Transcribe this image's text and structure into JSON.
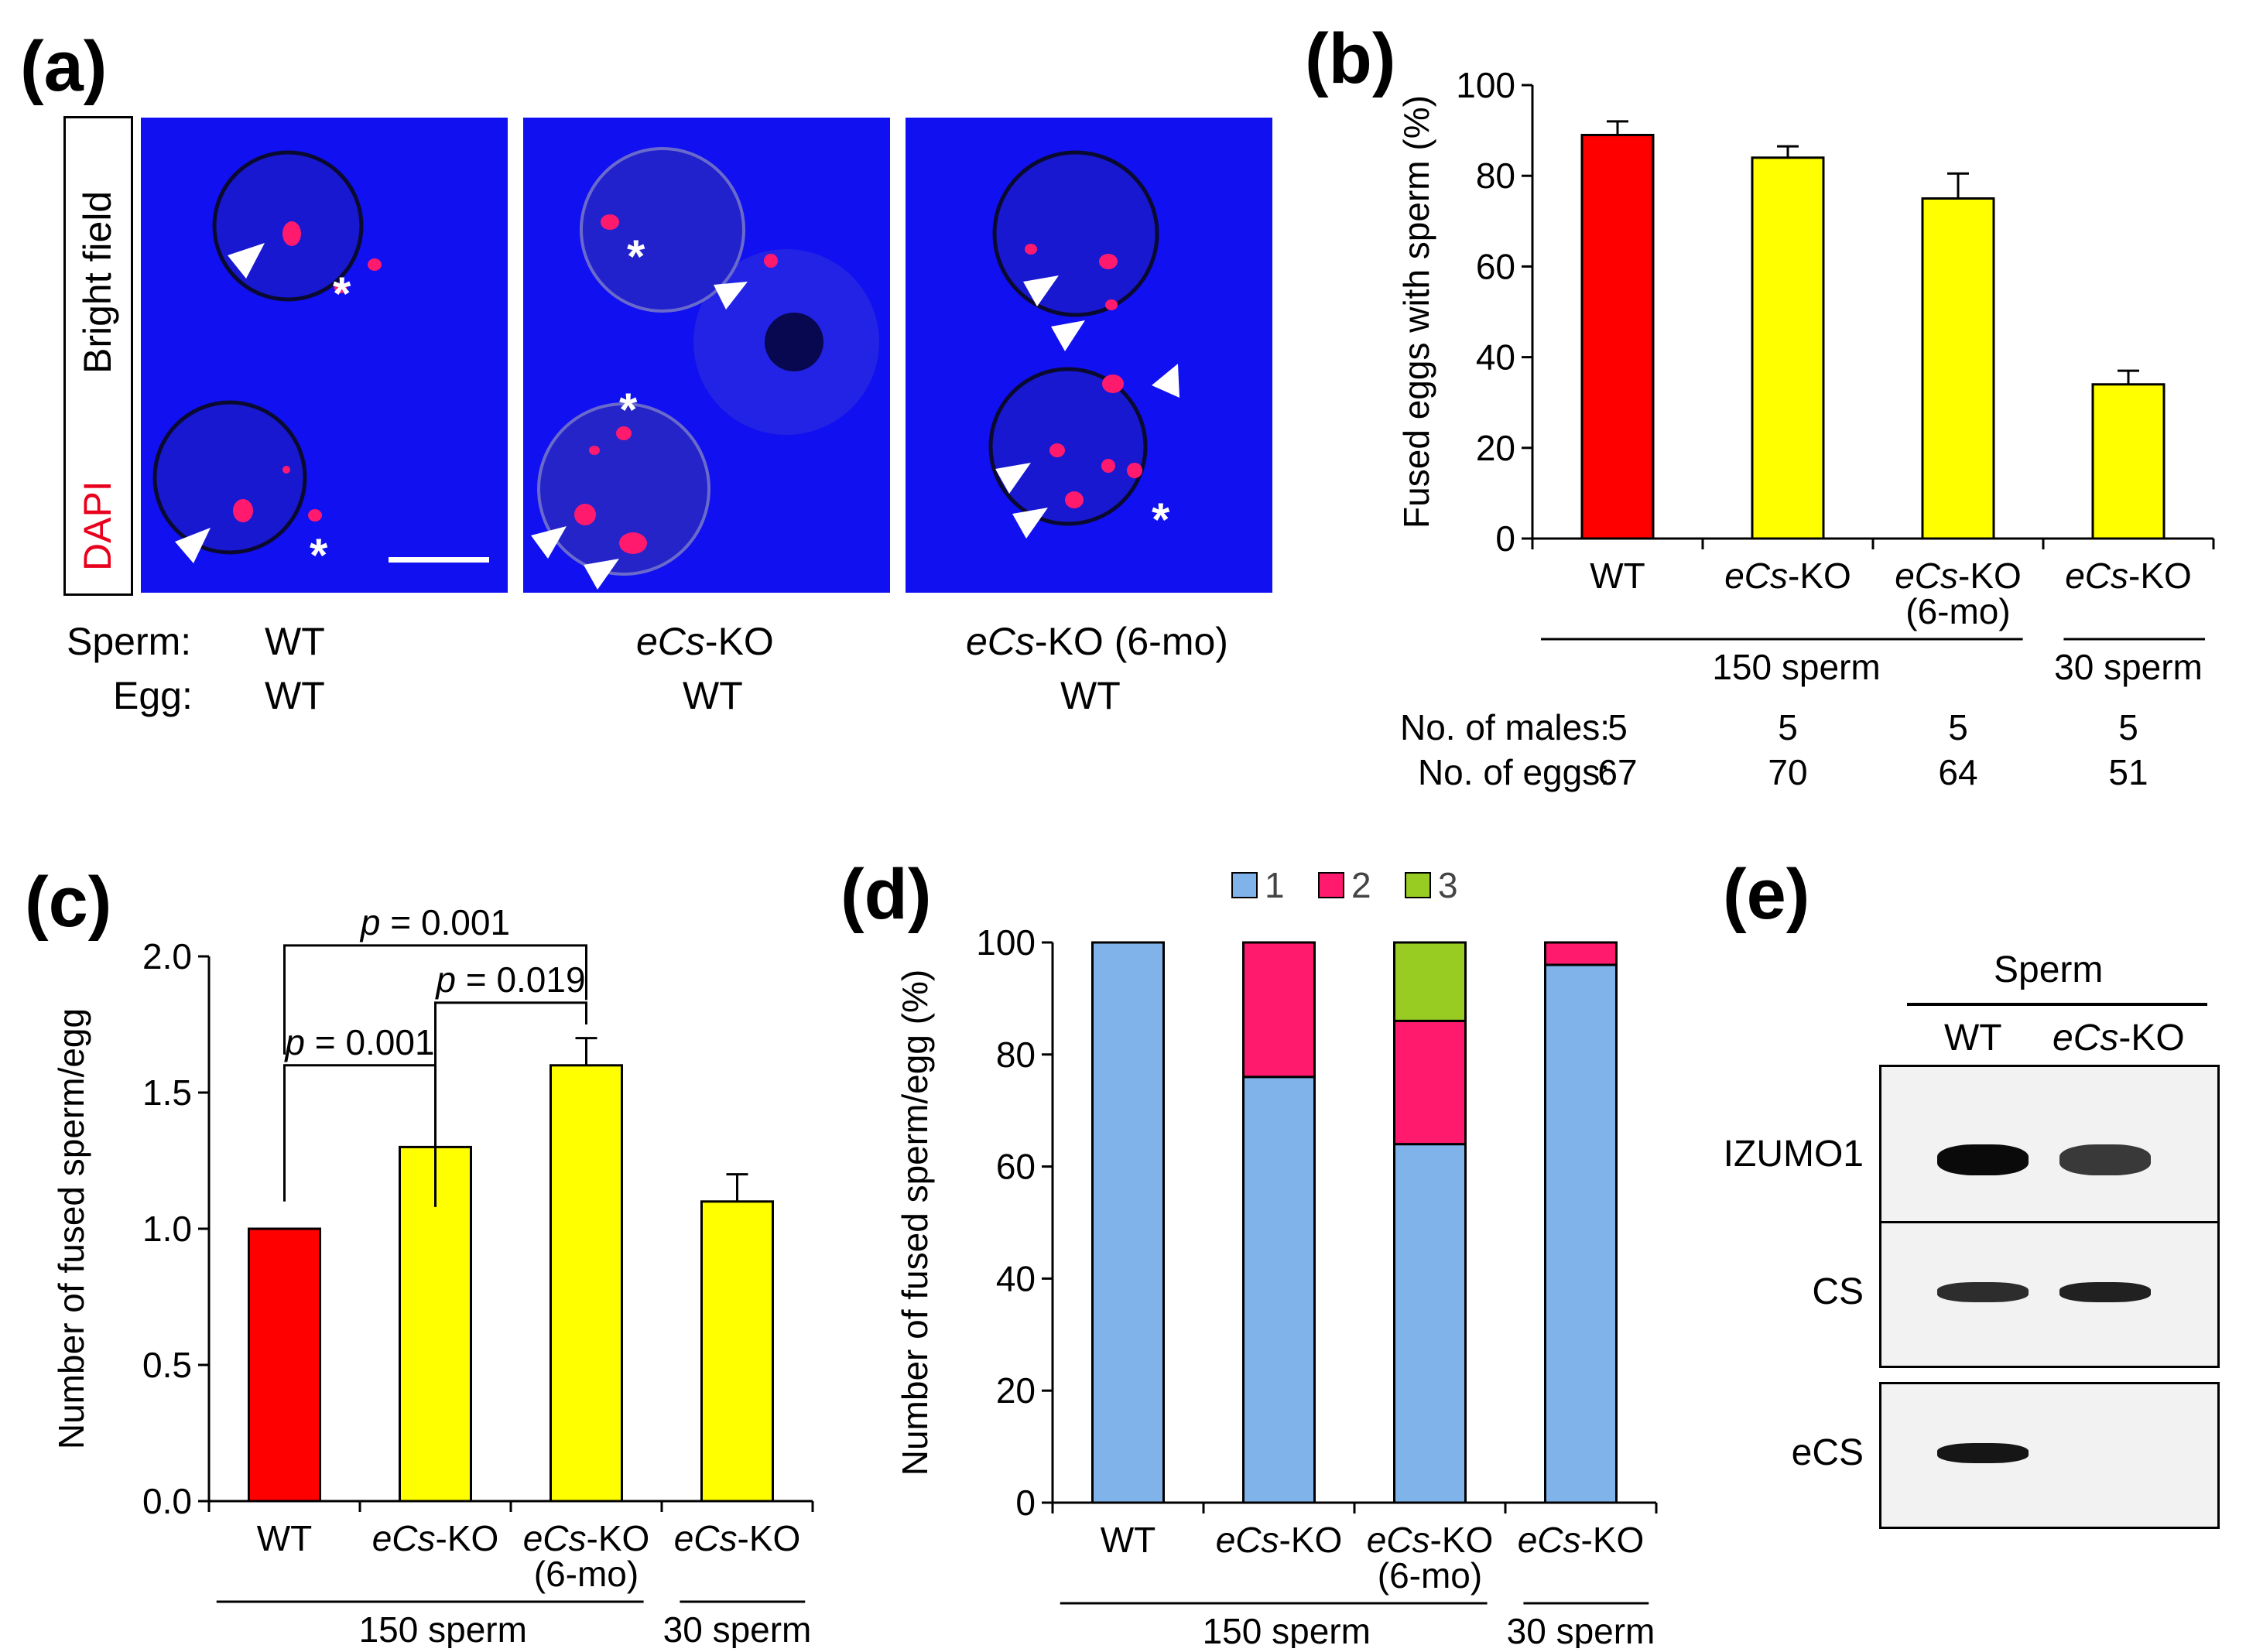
{
  "figure": {
    "panels": {
      "a": {
        "label": "(a)",
        "stain_labels": {
          "bright": "Bright field",
          "dapi": "DAPI"
        },
        "row_sperm_label": "Sperm:",
        "row_egg_label": "Egg:",
        "columns": [
          {
            "sperm": "WT",
            "sperm_italic": "",
            "sperm_suffix": "",
            "egg": "WT"
          },
          {
            "sperm": "",
            "sperm_italic": "eCs",
            "sperm_suffix": "-KO",
            "egg": "WT"
          },
          {
            "sperm": "",
            "sperm_italic": "eCs",
            "sperm_suffix": "-KO (6-mo)",
            "egg": "WT"
          }
        ],
        "colors": {
          "background": "#1010f0",
          "dapi": "#ff1a6e",
          "marker": "#ffffff"
        }
      },
      "b": {
        "label": "(b)"
      },
      "c": {
        "label": "(c)"
      },
      "d": {
        "label": "(d)"
      },
      "e": {
        "label": "(e)",
        "header": "Sperm",
        "lanes": [
          {
            "text": "WT",
            "italic": "",
            "suffix": ""
          },
          {
            "text": "",
            "italic": "eCs",
            "suffix": "-KO"
          }
        ],
        "rows": [
          {
            "name": "IZUMO1",
            "bands": [
              1.0,
              0.8
            ]
          },
          {
            "name": "CS",
            "bands": [
              0.85,
              0.9
            ]
          },
          {
            "name": "eCS",
            "bands": [
              0.95,
              0.0
            ]
          }
        ]
      }
    }
  },
  "chart_data": [
    {
      "id": "b",
      "type": "bar",
      "categories": [
        "WT",
        "eCs-KO",
        "eCs-KO (6-mo)",
        "eCs-KO"
      ],
      "category_lines": [
        {
          "italic": "",
          "text": "WT",
          "line2": ""
        },
        {
          "italic": "eCs",
          "text": "-KO",
          "line2": ""
        },
        {
          "italic": "eCs",
          "text": "-KO",
          "line2": "(6-mo)"
        },
        {
          "italic": "eCs",
          "text": "-KO",
          "line2": ""
        }
      ],
      "values": [
        89,
        84,
        75,
        34
      ],
      "errors": [
        3,
        2.5,
        5.5,
        3
      ],
      "colors": [
        "#ff0000",
        "#ffff00",
        "#ffff00",
        "#ffff00"
      ],
      "ylabel": "Fused eggs with sperm (%)",
      "ylim": [
        0,
        100
      ],
      "yticks": [
        "0",
        "20",
        "40",
        "60",
        "80",
        "100"
      ],
      "groups": [
        {
          "label": "150 sperm"
        },
        {
          "label": "30 sperm"
        }
      ],
      "table": {
        "rows": [
          {
            "label": "No. of males:",
            "values": [
              "5",
              "5",
              "5",
              "5"
            ]
          },
          {
            "label": "No. of eggs:",
            "values": [
              "67",
              "70",
              "64",
              "51"
            ]
          }
        ]
      }
    },
    {
      "id": "c",
      "type": "bar",
      "categories": [
        "WT",
        "eCs-KO",
        "eCs-KO (6-mo)",
        "eCs-KO"
      ],
      "category_lines": [
        {
          "italic": "",
          "text": "WT",
          "line2": ""
        },
        {
          "italic": "eCs",
          "text": "-KO",
          "line2": ""
        },
        {
          "italic": "eCs",
          "text": "-KO",
          "line2": "(6-mo)"
        },
        {
          "italic": "eCs",
          "text": "-KO",
          "line2": ""
        }
      ],
      "values": [
        1.0,
        1.3,
        1.6,
        1.1
      ],
      "errors": [
        0,
        0,
        0.1,
        0.1
      ],
      "colors": [
        "#ff0000",
        "#ffff00",
        "#ffff00",
        "#ffff00"
      ],
      "ylabel": "Number of fused sperm/egg",
      "ylim": [
        0,
        2.0
      ],
      "yticks": [
        "0.0",
        "0.5",
        "1.0",
        "1.5",
        "2.0"
      ],
      "groups": [
        {
          "label": "150 sperm"
        },
        {
          "label": "30 sperm"
        }
      ],
      "significance": [
        {
          "from": 0,
          "to": 2,
          "p": "p",
          "text": " = 0.001"
        },
        {
          "from": 1,
          "to": 2,
          "p": "p",
          "text": " = 0.019"
        },
        {
          "from": 0,
          "to": 1,
          "p": "p",
          "text": " = 0.001"
        }
      ]
    },
    {
      "id": "d",
      "type": "bar",
      "stacked": true,
      "categories": [
        "WT",
        "eCs-KO",
        "eCs-KO (6-mo)",
        "eCs-KO"
      ],
      "category_lines": [
        {
          "italic": "",
          "text": "WT",
          "line2": ""
        },
        {
          "italic": "eCs",
          "text": "-KO",
          "line2": ""
        },
        {
          "italic": "eCs",
          "text": "-KO",
          "line2": "(6-mo)"
        },
        {
          "italic": "eCs",
          "text": "-KO",
          "line2": ""
        }
      ],
      "series": [
        {
          "name": "1",
          "color": "#7fb3ea",
          "values": [
            100,
            76,
            64,
            96
          ]
        },
        {
          "name": "2",
          "color": "#ff1a6e",
          "values": [
            0,
            24,
            22,
            4
          ]
        },
        {
          "name": "3",
          "color": "#99cc22",
          "values": [
            0,
            0,
            14,
            0
          ]
        }
      ],
      "ylabel": "Number of fused sperm/egg (%)",
      "ylim": [
        0,
        100
      ],
      "yticks": [
        "0",
        "20",
        "40",
        "60",
        "80",
        "100"
      ],
      "groups": [
        {
          "label": "150 sperm"
        },
        {
          "label": "30 sperm"
        }
      ],
      "legend_position": "top"
    }
  ]
}
